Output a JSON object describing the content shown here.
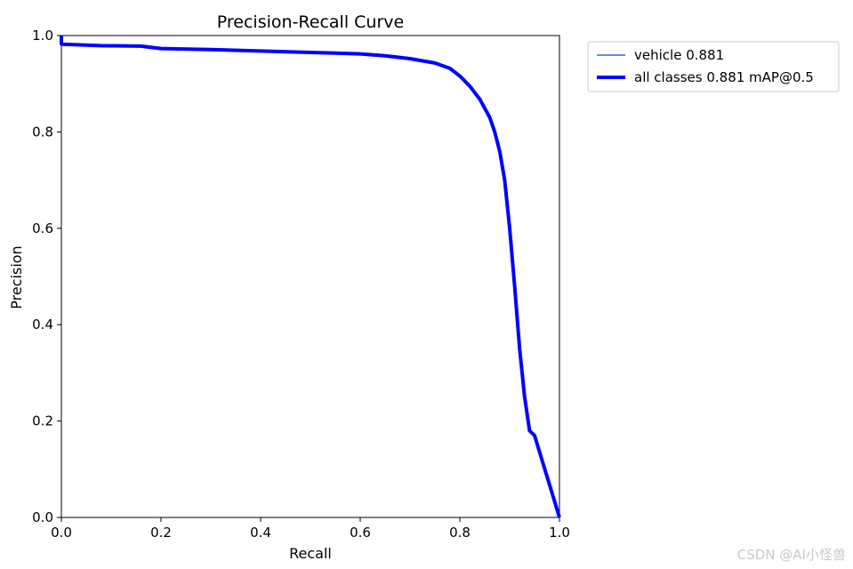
{
  "chart_data": {
    "type": "line",
    "title": "Precision-Recall Curve",
    "xlabel": "Recall",
    "ylabel": "Precision",
    "xlim": [
      0.0,
      1.0
    ],
    "ylim": [
      0.0,
      1.0
    ],
    "xticks": [
      "0.0",
      "0.2",
      "0.4",
      "0.6",
      "0.8",
      "1.0"
    ],
    "yticks": [
      "0.0",
      "0.2",
      "0.4",
      "0.6",
      "0.8",
      "1.0"
    ],
    "grid": false,
    "legend_position": "outside-top-right",
    "series": [
      {
        "name": "vehicle 0.881",
        "color": "#1f3fd0",
        "style": "thin",
        "x": [
          0.0,
          0.0,
          0.002,
          0.08,
          0.16,
          0.2,
          0.3,
          0.4,
          0.5,
          0.6,
          0.65,
          0.7,
          0.75,
          0.78,
          0.8,
          0.82,
          0.84,
          0.86,
          0.87,
          0.88,
          0.89,
          0.9,
          0.91,
          0.92,
          0.93,
          0.94,
          0.95,
          1.0
        ],
        "y": [
          1.0,
          0.983,
          0.982,
          0.979,
          0.978,
          0.973,
          0.971,
          0.968,
          0.965,
          0.962,
          0.958,
          0.952,
          0.943,
          0.932,
          0.916,
          0.895,
          0.868,
          0.83,
          0.8,
          0.76,
          0.7,
          0.6,
          0.48,
          0.35,
          0.25,
          0.18,
          0.17,
          0.0
        ]
      },
      {
        "name": "all classes 0.881 mAP@0.5",
        "color": "#0000ff",
        "style": "thick",
        "x": [
          0.0,
          0.0,
          0.002,
          0.08,
          0.16,
          0.2,
          0.3,
          0.4,
          0.5,
          0.6,
          0.65,
          0.7,
          0.75,
          0.78,
          0.8,
          0.82,
          0.84,
          0.86,
          0.87,
          0.88,
          0.89,
          0.9,
          0.91,
          0.92,
          0.93,
          0.94,
          0.95,
          1.0
        ],
        "y": [
          1.0,
          0.983,
          0.982,
          0.979,
          0.978,
          0.973,
          0.971,
          0.968,
          0.965,
          0.962,
          0.958,
          0.952,
          0.943,
          0.932,
          0.916,
          0.895,
          0.868,
          0.83,
          0.8,
          0.76,
          0.7,
          0.6,
          0.48,
          0.35,
          0.25,
          0.18,
          0.17,
          0.0
        ]
      }
    ]
  },
  "watermark": "CSDN @AI小怪兽"
}
